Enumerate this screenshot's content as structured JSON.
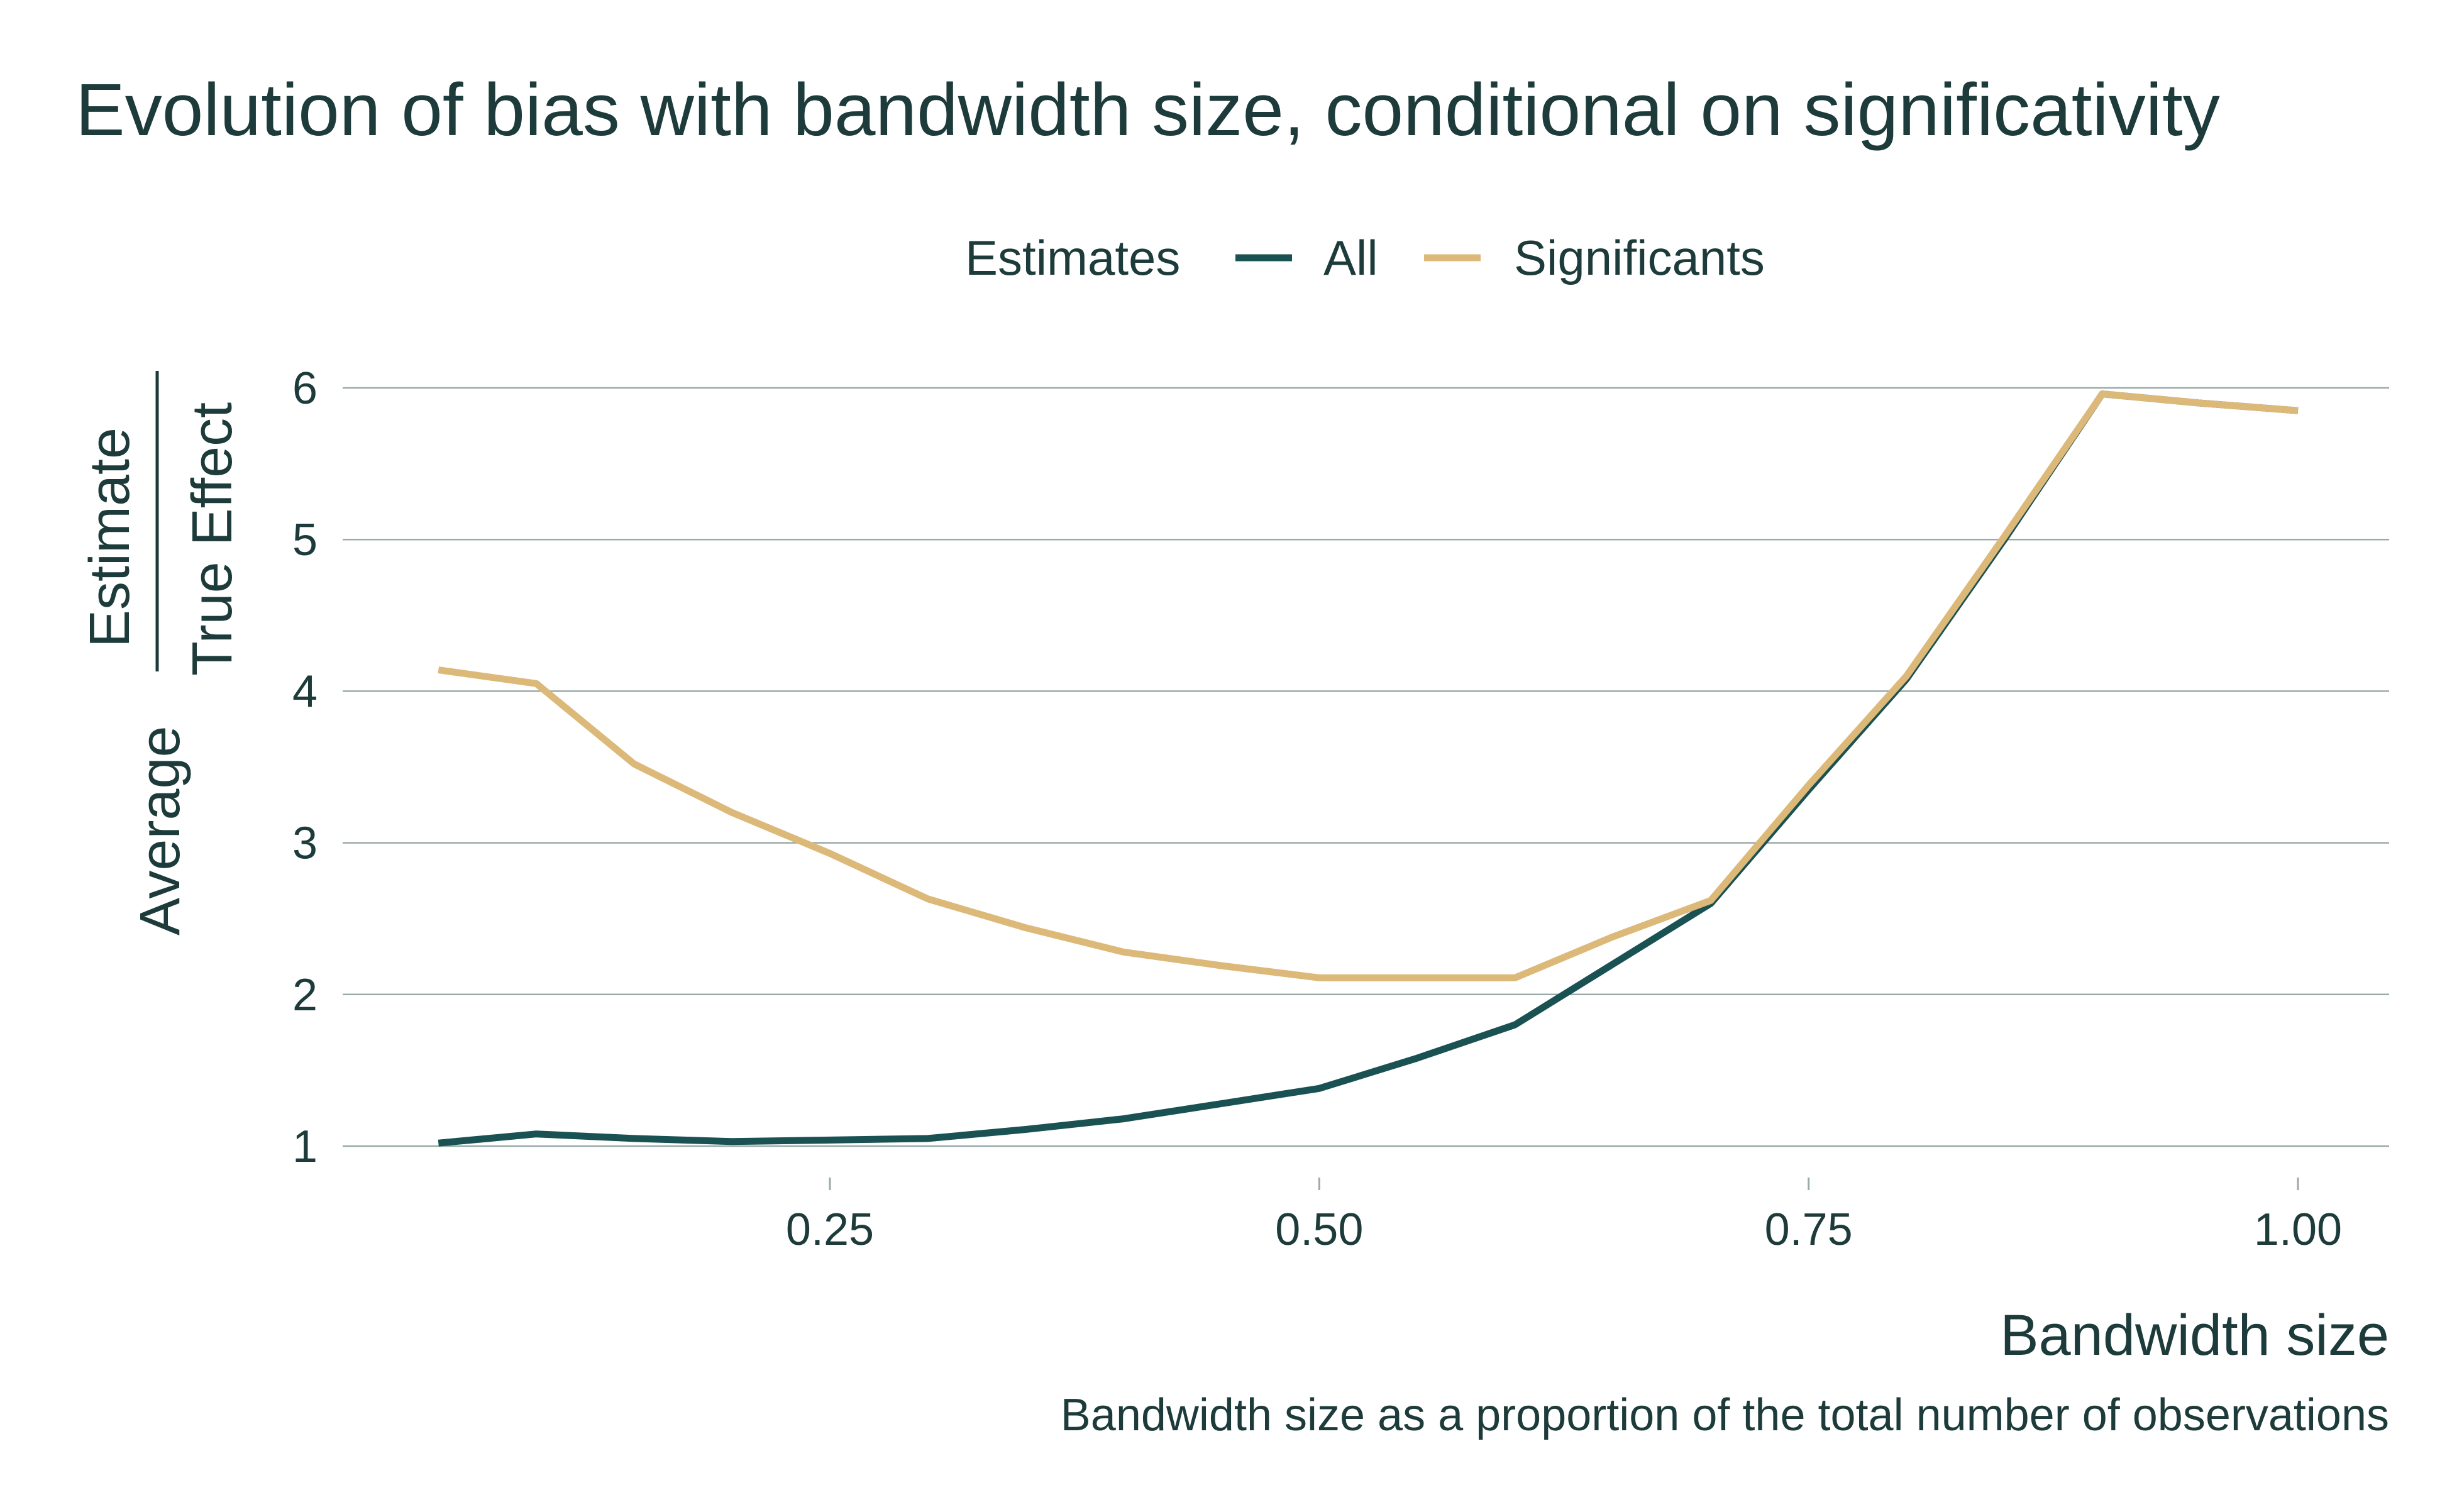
{
  "chart_data": {
    "type": "line",
    "title": "Evolution of bias with bandwidth size, conditional on significativity",
    "xlabel": "Bandwidth size",
    "xlabel_subtitle": "Bandwidth size as a proportion of the total number of observations",
    "ylabel_prefix": "Average",
    "ylabel_numerator": "Estimate",
    "ylabel_denominator": "True Effect",
    "legend_title": "Estimates",
    "legend_position": "top",
    "xlim": [
      0.0,
      1.05
    ],
    "ylim": [
      1,
      6
    ],
    "x_ticks": [
      0.25,
      0.5,
      0.75,
      1.0
    ],
    "x_tick_labels": [
      "0.25",
      "0.50",
      "0.75",
      "1.00"
    ],
    "y_ticks": [
      1,
      2,
      3,
      4,
      5,
      6
    ],
    "y_tick_labels": [
      "1",
      "2",
      "3",
      "4",
      "5",
      "6"
    ],
    "grid": "horizontal",
    "x": [
      0.05,
      0.1,
      0.15,
      0.2,
      0.25,
      0.3,
      0.35,
      0.4,
      0.45,
      0.5,
      0.55,
      0.6,
      0.65,
      0.7,
      0.75,
      0.8,
      0.85,
      0.9,
      0.95,
      1.0
    ],
    "series": [
      {
        "name": "All",
        "color": "#1a5152",
        "values": [
          1.02,
          1.08,
          1.05,
          1.03,
          1.04,
          1.05,
          1.11,
          1.18,
          1.28,
          1.38,
          1.58,
          1.8,
          2.2,
          2.6,
          3.35,
          4.08,
          5.0,
          5.96,
          5.9,
          5.85
        ]
      },
      {
        "name": "Significants",
        "color": "#dcb978",
        "values": [
          4.14,
          4.05,
          3.52,
          3.2,
          2.93,
          2.63,
          2.44,
          2.28,
          2.19,
          2.11,
          2.11,
          2.11,
          2.38,
          2.62,
          3.38,
          4.1,
          5.02,
          5.96,
          5.9,
          5.85
        ]
      }
    ]
  }
}
